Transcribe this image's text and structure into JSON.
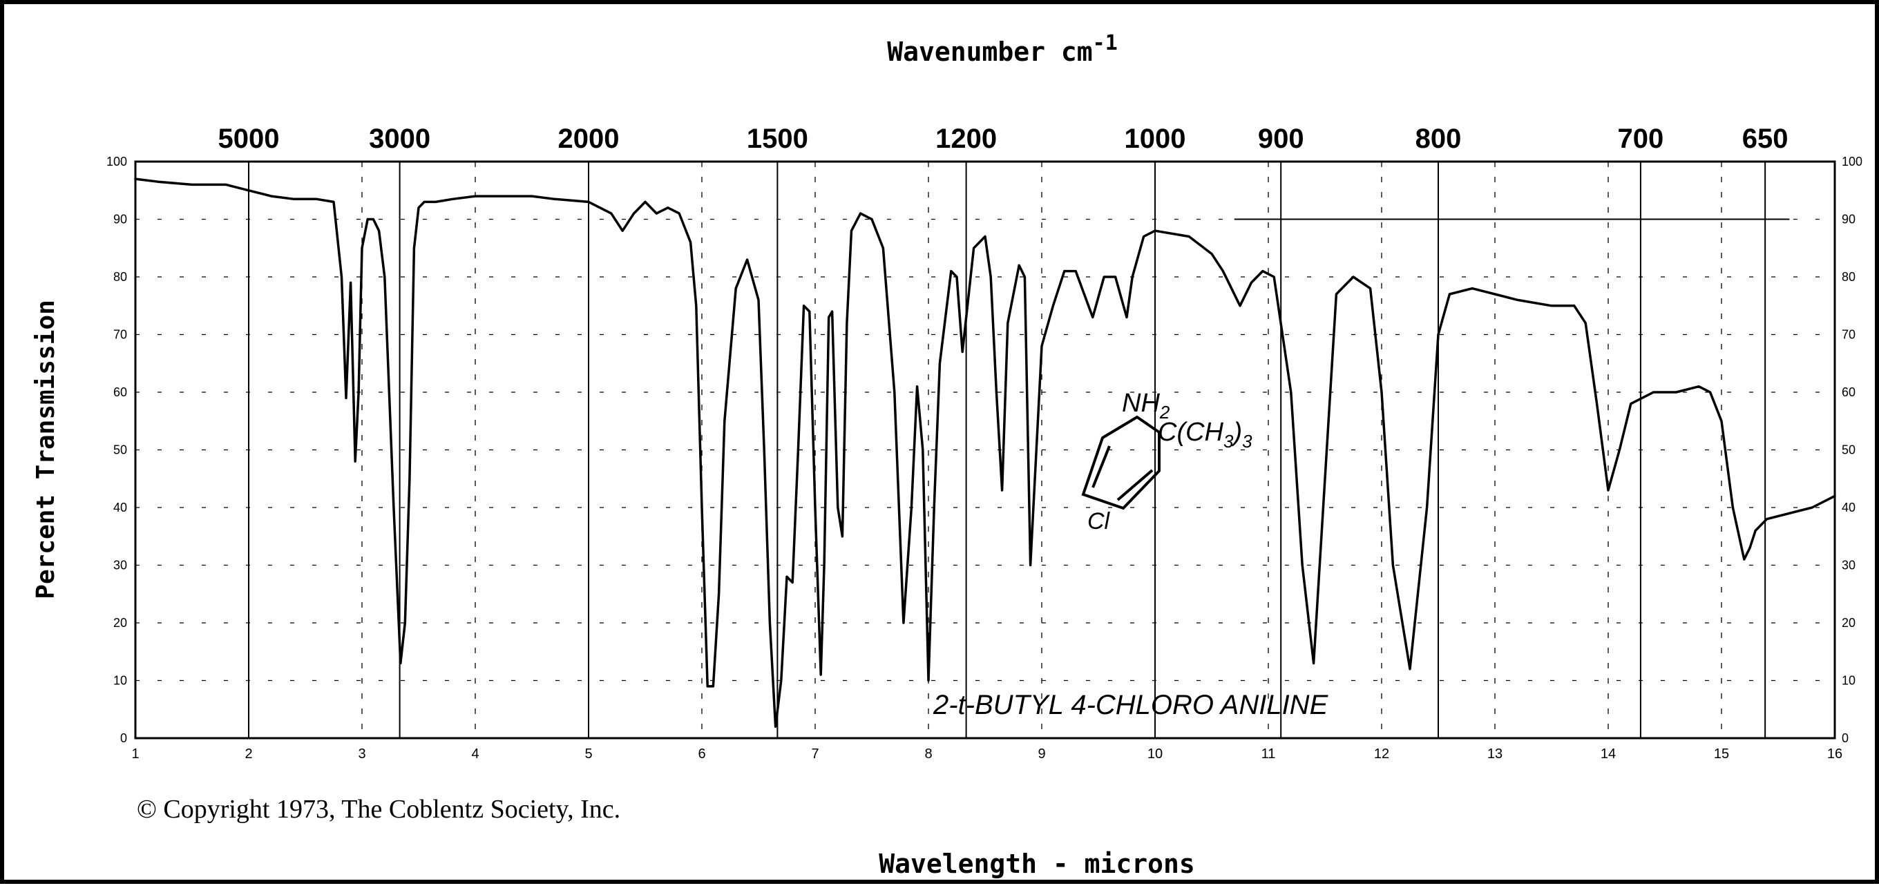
{
  "chart_data": {
    "type": "line",
    "title": "2-t-BUTYL 4-CHLORO ANILINE",
    "top_axis_label": "Wavenumber cm",
    "top_axis_label_sup": "-1",
    "xlabel": "Wavelength - microns",
    "ylabel": "Percent Transmission",
    "copyright": "© Copyright 1973, The Coblentz Society, Inc.",
    "compound": {
      "nh2": "NH",
      "nh2_sub": "2",
      "tbutyl": "C(CH",
      "tbutyl_sub": "3",
      "tbutyl_end": ")",
      "tbutyl_sub2": "3",
      "cl": "Cl"
    },
    "xlim": [
      1,
      16
    ],
    "ylim": [
      0,
      100
    ],
    "grid": true,
    "x_ticks": [
      1,
      2,
      3,
      4,
      5,
      6,
      7,
      8,
      9,
      10,
      11,
      12,
      13,
      14,
      15,
      16
    ],
    "y_ticks_left": [
      "0",
      "10",
      "20",
      "30",
      "40",
      "50",
      "60",
      "70",
      "80",
      "90",
      "100"
    ],
    "y_ticks_right": [
      "0",
      "10",
      "20",
      "30",
      "40",
      "50",
      "60",
      "70",
      "80",
      "90",
      "100"
    ],
    "wavenumber_ticks": [
      {
        "label": "5000",
        "micron": 2.0
      },
      {
        "label": "3000",
        "micron": 3.333
      },
      {
        "label": "2000",
        "micron": 5.0
      },
      {
        "label": "1500",
        "micron": 6.667
      },
      {
        "label": "1200",
        "micron": 8.333
      },
      {
        "label": "1000",
        "micron": 10.0
      },
      {
        "label": "900",
        "micron": 11.111
      },
      {
        "label": "800",
        "micron": 12.5
      },
      {
        "label": "700",
        "micron": 14.286
      },
      {
        "label": "650",
        "micron": 15.385
      }
    ],
    "series": [
      {
        "x": [
          1.0,
          1.2,
          1.5,
          1.8,
          2.0,
          2.2,
          2.4,
          2.6,
          2.75,
          2.82,
          2.86,
          2.9,
          2.94,
          2.97,
          3.0,
          3.05,
          3.1,
          3.15,
          3.2,
          3.28,
          3.34,
          3.38,
          3.42,
          3.46,
          3.5,
          3.55,
          3.65,
          3.8,
          4.0,
          4.3,
          4.5,
          4.7,
          5.0,
          5.2,
          5.3,
          5.4,
          5.5,
          5.6,
          5.7,
          5.8,
          5.9,
          5.95,
          6.0,
          6.05,
          6.1,
          6.15,
          6.2,
          6.3,
          6.4,
          6.5,
          6.55,
          6.6,
          6.65,
          6.7,
          6.75,
          6.8,
          6.85,
          6.9,
          6.95,
          7.0,
          7.05,
          7.08,
          7.12,
          7.15,
          7.2,
          7.24,
          7.28,
          7.32,
          7.4,
          7.5,
          7.6,
          7.7,
          7.78,
          7.85,
          7.9,
          7.95,
          8.0,
          8.05,
          8.1,
          8.2,
          8.25,
          8.3,
          8.4,
          8.5,
          8.55,
          8.6,
          8.65,
          8.7,
          8.8,
          8.85,
          8.9,
          9.0,
          9.1,
          9.2,
          9.3,
          9.45,
          9.55,
          9.65,
          9.75,
          9.8,
          9.9,
          10.0,
          10.3,
          10.5,
          10.6,
          10.75,
          10.85,
          10.95,
          11.05,
          11.2,
          11.3,
          11.4,
          11.5,
          11.6,
          11.75,
          11.9,
          12.0,
          12.1,
          12.25,
          12.4,
          12.5,
          12.6,
          12.8,
          13.0,
          13.2,
          13.5,
          13.7,
          13.8,
          13.9,
          14.0,
          14.1,
          14.2,
          14.4,
          14.6,
          14.8,
          14.9,
          15.0,
          15.1,
          15.2,
          15.25,
          15.3,
          15.4,
          15.6,
          15.8,
          16.0
        ],
        "y": [
          97,
          96.5,
          96,
          96,
          95,
          94,
          93.5,
          93.5,
          93,
          80,
          59,
          79,
          48,
          60,
          85,
          90,
          90,
          88,
          80,
          40,
          13,
          20,
          45,
          85,
          92,
          93,
          93,
          93.5,
          94,
          94,
          94,
          93.5,
          93,
          91,
          88,
          91,
          93,
          91,
          92,
          91,
          86,
          75,
          40,
          9,
          9,
          25,
          55,
          78,
          83,
          76,
          50,
          20,
          2,
          10,
          28,
          27,
          50,
          75,
          74,
          40,
          11,
          30,
          73,
          74,
          40,
          35,
          72,
          88,
          91,
          90,
          85,
          60,
          20,
          40,
          61,
          50,
          10,
          40,
          65,
          81,
          80,
          67,
          85,
          87,
          80,
          60,
          43,
          72,
          82,
          80,
          30,
          68,
          75,
          81,
          81,
          73,
          80,
          80,
          73,
          80,
          87,
          88,
          87,
          84,
          81,
          75,
          79,
          81,
          80,
          60,
          30,
          13,
          45,
          77,
          80,
          78,
          60,
          30,
          12,
          40,
          70,
          77,
          78,
          77,
          76,
          75,
          75,
          72,
          58,
          43,
          50,
          58,
          60,
          60,
          61,
          60,
          55,
          40,
          31,
          33,
          36,
          38,
          39,
          40,
          42
        ]
      }
    ]
  }
}
